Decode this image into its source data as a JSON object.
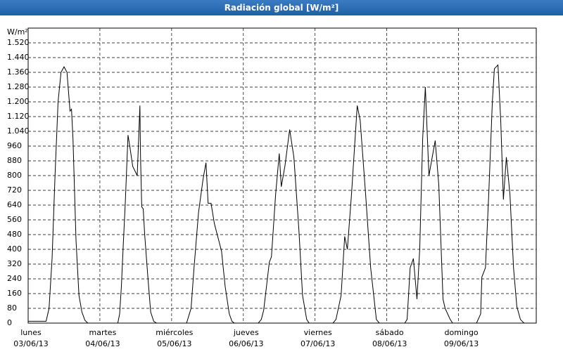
{
  "chart_data": {
    "type": "line",
    "title": "Radiación global [W/m²]",
    "y_unit": "W/m²",
    "color": "#000000",
    "grid": true,
    "xlim": [
      0,
      170
    ],
    "ylim": [
      0,
      1600
    ],
    "xticks": [
      {
        "value": 0,
        "label": "lunes"
      },
      {
        "value": 24,
        "label": "martes"
      },
      {
        "value": 48,
        "label": "miércoles"
      },
      {
        "value": 72,
        "label": "jueves"
      },
      {
        "value": 96,
        "label": "viernes"
      },
      {
        "value": 120,
        "label": "sábado"
      },
      {
        "value": 144,
        "label": "domingo"
      }
    ],
    "xtick_dates": [
      "03/06/13",
      "04/06/13",
      "05/06/13",
      "06/06/13",
      "07/06/13",
      "08/06/13",
      "09/06/13"
    ],
    "yticks": [
      0,
      80,
      160,
      240,
      320,
      400,
      480,
      560,
      640,
      720,
      800,
      880,
      960,
      {
        "value": 1040,
        "label": "1.040"
      },
      {
        "value": 1120,
        "label": "1.120"
      },
      {
        "value": 1200,
        "label": "1.200"
      },
      {
        "value": 1280,
        "label": "1.280"
      },
      {
        "value": 1360,
        "label": "1.360"
      },
      {
        "value": 1440,
        "label": "1.440"
      },
      {
        "value": 1520,
        "label": "1.520"
      }
    ],
    "x": [
      0,
      6,
      7,
      8,
      9,
      10,
      11,
      12,
      13,
      14,
      14.5,
      15,
      16,
      17,
      18,
      19,
      20,
      30,
      30.6,
      31.2,
      31.8,
      32.5,
      33.4,
      34,
      35,
      36.5,
      37.4,
      37.6,
      38,
      38.5,
      39,
      40,
      41,
      42,
      43,
      53,
      54.5,
      55.5,
      57,
      58.5,
      59.5,
      60.2,
      61.2,
      62.3,
      64.7,
      65.9,
      67.3,
      68.2,
      69,
      77,
      78,
      78.8,
      80.7,
      81.4,
      82.8,
      84,
      84.7,
      85.9,
      87.5,
      88.9,
      90.6,
      91.8,
      93.2,
      94,
      102,
      103,
      104.7,
      105.9,
      106.8,
      108.2,
      110.1,
      111.1,
      112.9,
      114.6,
      116.5,
      117.5,
      126,
      126.8,
      127.8,
      128.9,
      130.1,
      131,
      132,
      132.9,
      134.1,
      136.2,
      137.4,
      138.8,
      139.5,
      141.2,
      142,
      150,
      151.4,
      151.8,
      153,
      154.1,
      155.3,
      156,
      157.2,
      158.1,
      159,
      160,
      161.2,
      162.4,
      163.5,
      164.7,
      165.9,
      170
    ],
    "values": [
      10,
      10,
      80,
      350,
      800,
      1200,
      1360,
      1390,
      1360,
      1150,
      1160,
      1000,
      450,
      150,
      60,
      15,
      0,
      0,
      50,
      200,
      420,
      650,
      1020,
      960,
      850,
      800,
      1180,
      900,
      630,
      620,
      480,
      260,
      60,
      10,
      0,
      0,
      80,
      300,
      600,
      780,
      870,
      650,
      650,
      540,
      390,
      200,
      50,
      10,
      0,
      0,
      20,
      70,
      330,
      360,
      700,
      920,
      740,
      850,
      1050,
      900,
      500,
      150,
      20,
      0,
      0,
      20,
      150,
      470,
      400,
      700,
      1180,
      1100,
      700,
      300,
      20,
      0,
      0,
      20,
      300,
      350,
      130,
      400,
      1000,
      1280,
      800,
      990,
      750,
      130,
      80,
      20,
      0,
      0,
      50,
      250,
      300,
      700,
      1200,
      1380,
      1400,
      1100,
      670,
      900,
      700,
      300,
      90,
      20,
      0,
      0
    ]
  }
}
